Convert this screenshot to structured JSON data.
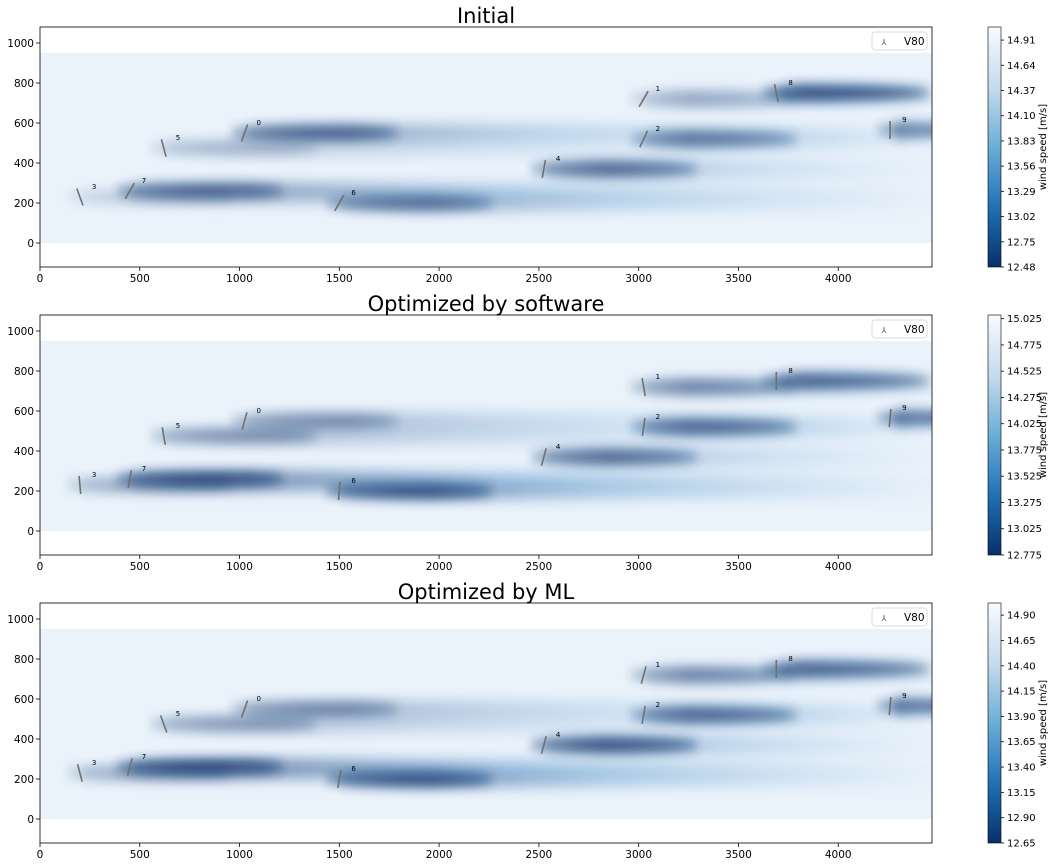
{
  "chart_data": [
    {
      "type": "heatmap",
      "title": "Initial",
      "legend": {
        "label": "V80",
        "placement": "top-right"
      },
      "xlim": [
        0,
        4470
      ],
      "ylim": [
        -120,
        1080
      ],
      "xticks": [
        0,
        500,
        1000,
        1500,
        2000,
        2500,
        3000,
        3500,
        4000
      ],
      "yticks": [
        0,
        200,
        400,
        600,
        800,
        1000
      ],
      "colorbar": {
        "label": "wind speed [m/s]",
        "range": [
          12.48,
          15.05
        ],
        "ticks": [
          "12.48",
          "12.75",
          "13.02",
          "13.29",
          "13.56",
          "13.83",
          "14.10",
          "14.37",
          "14.64",
          "14.91"
        ]
      },
      "turbines": [
        {
          "id": "0",
          "x": 1025,
          "y": 550,
          "yaw": 20,
          "wake_strength": 0.75
        },
        {
          "id": "1",
          "x": 3025,
          "y": 720,
          "yaw": 30,
          "wake_strength": 0.2
        },
        {
          "id": "2",
          "x": 3025,
          "y": 520,
          "yaw": 25,
          "wake_strength": 0.55
        },
        {
          "id": "3",
          "x": 200,
          "y": 230,
          "yaw": -20,
          "wake_strength": 0.0
        },
        {
          "id": "4",
          "x": 2525,
          "y": 370,
          "yaw": 10,
          "wake_strength": 0.65
        },
        {
          "id": "5",
          "x": 620,
          "y": 475,
          "yaw": -15,
          "wake_strength": 0.15
        },
        {
          "id": "6",
          "x": 1500,
          "y": 200,
          "yaw": 30,
          "wake_strength": 0.6
        },
        {
          "id": "7",
          "x": 450,
          "y": 260,
          "yaw": 30,
          "wake_strength": 0.7
        },
        {
          "id": "8",
          "x": 3690,
          "y": 750,
          "yaw": -12,
          "wake_strength": 0.95
        },
        {
          "id": "9",
          "x": 4260,
          "y": 565,
          "yaw": 0,
          "wake_strength": 0.6
        }
      ]
    },
    {
      "type": "heatmap",
      "title": "Optimized by software",
      "legend": {
        "label": "V80",
        "placement": "top-right"
      },
      "xlim": [
        0,
        4470
      ],
      "ylim": [
        -120,
        1080
      ],
      "xticks": [
        0,
        500,
        1000,
        1500,
        2000,
        2500,
        3000,
        3500,
        4000
      ],
      "yticks": [
        0,
        200,
        400,
        600,
        800,
        1000
      ],
      "colorbar": {
        "label": "wind speed [m/s]",
        "range": [
          12.775,
          15.06
        ],
        "ticks": [
          "12.775",
          "13.025",
          "13.275",
          "13.525",
          "13.775",
          "14.025",
          "14.275",
          "14.525",
          "14.775",
          "15.025"
        ]
      },
      "turbines": [
        {
          "id": "0",
          "x": 1025,
          "y": 550,
          "yaw": 15,
          "wake_strength": 0.4
        },
        {
          "id": "1",
          "x": 3025,
          "y": 720,
          "yaw": -10,
          "wake_strength": 0.45
        },
        {
          "id": "2",
          "x": 3025,
          "y": 520,
          "yaw": 8,
          "wake_strength": 0.7
        },
        {
          "id": "3",
          "x": 200,
          "y": 230,
          "yaw": -5,
          "wake_strength": 0.25
        },
        {
          "id": "4",
          "x": 2525,
          "y": 370,
          "yaw": 15,
          "wake_strength": 0.65
        },
        {
          "id": "5",
          "x": 620,
          "y": 475,
          "yaw": -10,
          "wake_strength": 0.4
        },
        {
          "id": "6",
          "x": 1500,
          "y": 200,
          "yaw": 5,
          "wake_strength": 0.85
        },
        {
          "id": "7",
          "x": 450,
          "y": 260,
          "yaw": 10,
          "wake_strength": 0.9
        },
        {
          "id": "8",
          "x": 3690,
          "y": 750,
          "yaw": 0,
          "wake_strength": 0.75
        },
        {
          "id": "9",
          "x": 4260,
          "y": 565,
          "yaw": 5,
          "wake_strength": 0.75
        }
      ]
    },
    {
      "type": "heatmap",
      "title": "Optimized by ML",
      "legend": {
        "label": "V80",
        "placement": "top-right"
      },
      "xlim": [
        0,
        4470
      ],
      "ylim": [
        -120,
        1080
      ],
      "xticks": [
        0,
        500,
        1000,
        1500,
        2000,
        2500,
        3000,
        3500,
        4000
      ],
      "yticks": [
        0,
        200,
        400,
        600,
        800,
        1000
      ],
      "colorbar": {
        "label": "wind speed [m/s]",
        "range": [
          12.65,
          15.02
        ],
        "ticks": [
          "12.65",
          "12.90",
          "13.15",
          "13.40",
          "13.65",
          "13.90",
          "14.15",
          "14.40",
          "14.65",
          "14.90"
        ]
      },
      "turbines": [
        {
          "id": "0",
          "x": 1025,
          "y": 550,
          "yaw": 20,
          "wake_strength": 0.45
        },
        {
          "id": "1",
          "x": 3025,
          "y": 720,
          "yaw": 15,
          "wake_strength": 0.45
        },
        {
          "id": "2",
          "x": 3025,
          "y": 520,
          "yaw": 10,
          "wake_strength": 0.7
        },
        {
          "id": "3",
          "x": 200,
          "y": 230,
          "yaw": -15,
          "wake_strength": 0.25
        },
        {
          "id": "4",
          "x": 2525,
          "y": 370,
          "yaw": 15,
          "wake_strength": 0.85
        },
        {
          "id": "5",
          "x": 620,
          "y": 475,
          "yaw": -20,
          "wake_strength": 0.35
        },
        {
          "id": "6",
          "x": 1500,
          "y": 200,
          "yaw": 10,
          "wake_strength": 0.85
        },
        {
          "id": "7",
          "x": 450,
          "y": 260,
          "yaw": 15,
          "wake_strength": 0.95
        },
        {
          "id": "8",
          "x": 3690,
          "y": 750,
          "yaw": 0,
          "wake_strength": 0.75
        },
        {
          "id": "9",
          "x": 4260,
          "y": 565,
          "yaw": 5,
          "wake_strength": 0.75
        }
      ]
    }
  ]
}
